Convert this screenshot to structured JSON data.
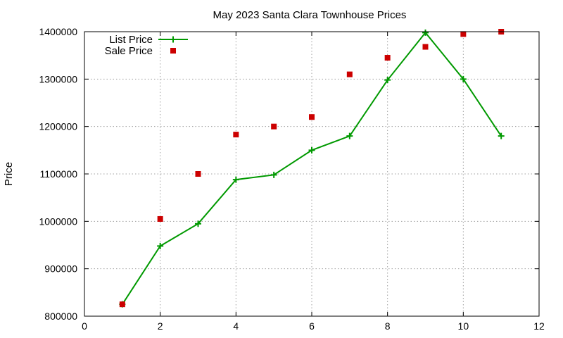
{
  "chart_data": {
    "type": "line",
    "title": "May 2023 Santa Clara Townhouse Prices",
    "xlabel": "",
    "ylabel": "Price",
    "xlim": [
      0,
      12
    ],
    "ylim": [
      800000,
      1400000
    ],
    "x_ticks": [
      0,
      2,
      4,
      6,
      8,
      10,
      12
    ],
    "y_ticks": [
      800000,
      900000,
      1000000,
      1100000,
      1200000,
      1300000,
      1400000
    ],
    "grid": true,
    "legend_position": "top-left",
    "series": [
      {
        "name": "List Price",
        "style": "line-with-plus-markers",
        "color": "#009900",
        "x": [
          1,
          2,
          3,
          4,
          5,
          6,
          7,
          8,
          9,
          10,
          11
        ],
        "y": [
          825000,
          948000,
          995000,
          1088000,
          1098000,
          1150000,
          1180000,
          1298000,
          1398000,
          1300000,
          1180000
        ]
      },
      {
        "name": "Sale Price",
        "style": "square-markers",
        "color": "#cc0000",
        "x": [
          1,
          2,
          3,
          4,
          5,
          6,
          7,
          8,
          9,
          10,
          11
        ],
        "y": [
          825000,
          1005000,
          1100000,
          1183000,
          1200000,
          1220000,
          1310000,
          1345000,
          1368000,
          1395000,
          1400000
        ]
      }
    ]
  }
}
